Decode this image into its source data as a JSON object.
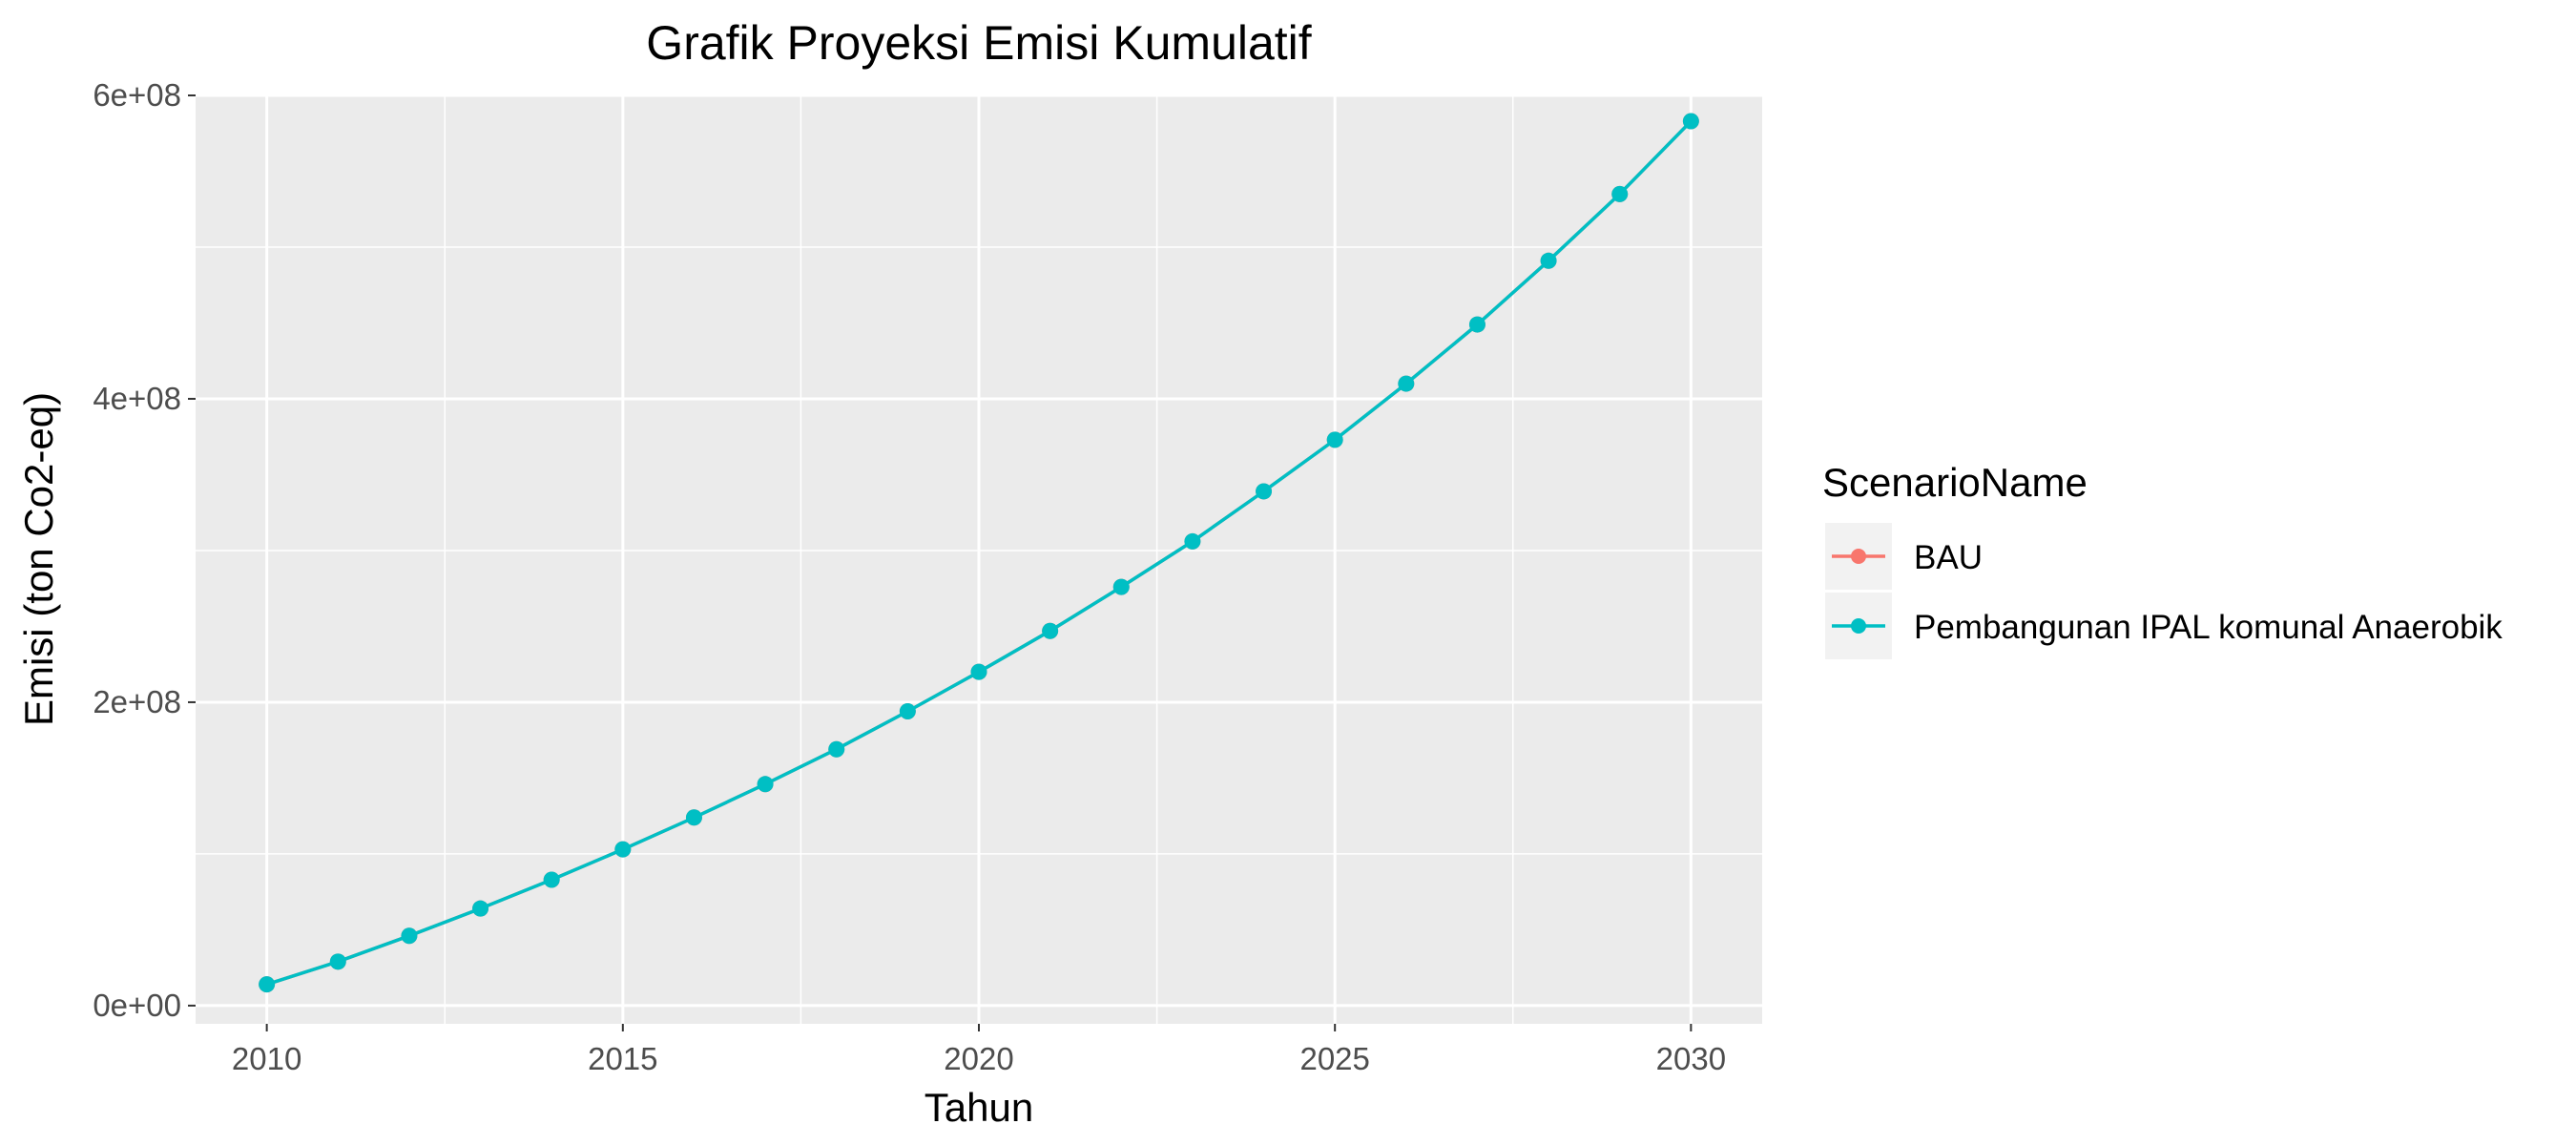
{
  "chart_data": {
    "type": "line",
    "title": "Grafik Proyeksi Emisi Kumulatif",
    "xlabel": "Tahun",
    "ylabel": "Emisi (ton Co2-eq)",
    "xlim": [
      2009,
      2031
    ],
    "ylim": [
      -12000000,
      600000000
    ],
    "x_ticks": [
      2010,
      2015,
      2020,
      2025,
      2030
    ],
    "x_tick_labels": [
      "2010",
      "2015",
      "2020",
      "2025",
      "2030"
    ],
    "y_ticks": [
      0,
      200000000,
      400000000,
      600000000
    ],
    "y_tick_labels": [
      "0e+00",
      "2e+08",
      "4e+08",
      "6e+08"
    ],
    "grid": true,
    "legend_position": "right",
    "legend_title": "ScenarioName",
    "x": [
      2010,
      2011,
      2012,
      2013,
      2014,
      2015,
      2016,
      2017,
      2018,
      2019,
      2020,
      2021,
      2022,
      2023,
      2024,
      2025,
      2026,
      2027,
      2028,
      2029,
      2030
    ],
    "series": [
      {
        "name": "BAU",
        "color": "#F8766D",
        "values": [
          14000000,
          29000000,
          46000000,
          64000000,
          83000000,
          103000000,
          124000000,
          146000000,
          169000000,
          194000000,
          220000000,
          247000000,
          276000000,
          306000000,
          339000000,
          373000000,
          410000000,
          449000000,
          491000000,
          535000000,
          583000000
        ]
      },
      {
        "name": "Pembangunan IPAL komunal Anaerobik",
        "color": "#00BFC4",
        "values": [
          14000000,
          29000000,
          46000000,
          64000000,
          83000000,
          103000000,
          124000000,
          146000000,
          169000000,
          194000000,
          220000000,
          247000000,
          276000000,
          306000000,
          339000000,
          373000000,
          410000000,
          449000000,
          491000000,
          535000000,
          583000000
        ]
      }
    ]
  }
}
